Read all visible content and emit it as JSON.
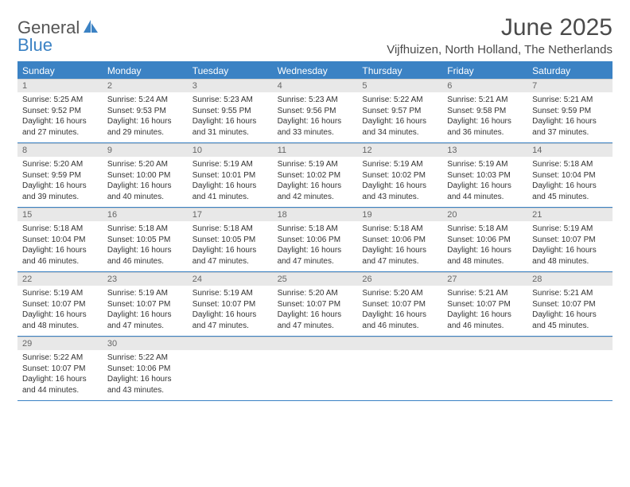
{
  "logo": {
    "text1": "General",
    "text2": "Blue"
  },
  "title": "June 2025",
  "location": "Vijfhuizen, North Holland, The Netherlands",
  "colors": {
    "accent": "#3b82c4",
    "header_bg": "#3b82c4",
    "cell_num_bg": "#e8e8e8"
  },
  "day_names": [
    "Sunday",
    "Monday",
    "Tuesday",
    "Wednesday",
    "Thursday",
    "Friday",
    "Saturday"
  ],
  "weeks": [
    [
      {
        "n": "1",
        "sr": "Sunrise: 5:25 AM",
        "ss": "Sunset: 9:52 PM",
        "d1": "Daylight: 16 hours",
        "d2": "and 27 minutes."
      },
      {
        "n": "2",
        "sr": "Sunrise: 5:24 AM",
        "ss": "Sunset: 9:53 PM",
        "d1": "Daylight: 16 hours",
        "d2": "and 29 minutes."
      },
      {
        "n": "3",
        "sr": "Sunrise: 5:23 AM",
        "ss": "Sunset: 9:55 PM",
        "d1": "Daylight: 16 hours",
        "d2": "and 31 minutes."
      },
      {
        "n": "4",
        "sr": "Sunrise: 5:23 AM",
        "ss": "Sunset: 9:56 PM",
        "d1": "Daylight: 16 hours",
        "d2": "and 33 minutes."
      },
      {
        "n": "5",
        "sr": "Sunrise: 5:22 AM",
        "ss": "Sunset: 9:57 PM",
        "d1": "Daylight: 16 hours",
        "d2": "and 34 minutes."
      },
      {
        "n": "6",
        "sr": "Sunrise: 5:21 AM",
        "ss": "Sunset: 9:58 PM",
        "d1": "Daylight: 16 hours",
        "d2": "and 36 minutes."
      },
      {
        "n": "7",
        "sr": "Sunrise: 5:21 AM",
        "ss": "Sunset: 9:59 PM",
        "d1": "Daylight: 16 hours",
        "d2": "and 37 minutes."
      }
    ],
    [
      {
        "n": "8",
        "sr": "Sunrise: 5:20 AM",
        "ss": "Sunset: 9:59 PM",
        "d1": "Daylight: 16 hours",
        "d2": "and 39 minutes."
      },
      {
        "n": "9",
        "sr": "Sunrise: 5:20 AM",
        "ss": "Sunset: 10:00 PM",
        "d1": "Daylight: 16 hours",
        "d2": "and 40 minutes."
      },
      {
        "n": "10",
        "sr": "Sunrise: 5:19 AM",
        "ss": "Sunset: 10:01 PM",
        "d1": "Daylight: 16 hours",
        "d2": "and 41 minutes."
      },
      {
        "n": "11",
        "sr": "Sunrise: 5:19 AM",
        "ss": "Sunset: 10:02 PM",
        "d1": "Daylight: 16 hours",
        "d2": "and 42 minutes."
      },
      {
        "n": "12",
        "sr": "Sunrise: 5:19 AM",
        "ss": "Sunset: 10:02 PM",
        "d1": "Daylight: 16 hours",
        "d2": "and 43 minutes."
      },
      {
        "n": "13",
        "sr": "Sunrise: 5:19 AM",
        "ss": "Sunset: 10:03 PM",
        "d1": "Daylight: 16 hours",
        "d2": "and 44 minutes."
      },
      {
        "n": "14",
        "sr": "Sunrise: 5:18 AM",
        "ss": "Sunset: 10:04 PM",
        "d1": "Daylight: 16 hours",
        "d2": "and 45 minutes."
      }
    ],
    [
      {
        "n": "15",
        "sr": "Sunrise: 5:18 AM",
        "ss": "Sunset: 10:04 PM",
        "d1": "Daylight: 16 hours",
        "d2": "and 46 minutes."
      },
      {
        "n": "16",
        "sr": "Sunrise: 5:18 AM",
        "ss": "Sunset: 10:05 PM",
        "d1": "Daylight: 16 hours",
        "d2": "and 46 minutes."
      },
      {
        "n": "17",
        "sr": "Sunrise: 5:18 AM",
        "ss": "Sunset: 10:05 PM",
        "d1": "Daylight: 16 hours",
        "d2": "and 47 minutes."
      },
      {
        "n": "18",
        "sr": "Sunrise: 5:18 AM",
        "ss": "Sunset: 10:06 PM",
        "d1": "Daylight: 16 hours",
        "d2": "and 47 minutes."
      },
      {
        "n": "19",
        "sr": "Sunrise: 5:18 AM",
        "ss": "Sunset: 10:06 PM",
        "d1": "Daylight: 16 hours",
        "d2": "and 47 minutes."
      },
      {
        "n": "20",
        "sr": "Sunrise: 5:18 AM",
        "ss": "Sunset: 10:06 PM",
        "d1": "Daylight: 16 hours",
        "d2": "and 48 minutes."
      },
      {
        "n": "21",
        "sr": "Sunrise: 5:19 AM",
        "ss": "Sunset: 10:07 PM",
        "d1": "Daylight: 16 hours",
        "d2": "and 48 minutes."
      }
    ],
    [
      {
        "n": "22",
        "sr": "Sunrise: 5:19 AM",
        "ss": "Sunset: 10:07 PM",
        "d1": "Daylight: 16 hours",
        "d2": "and 48 minutes."
      },
      {
        "n": "23",
        "sr": "Sunrise: 5:19 AM",
        "ss": "Sunset: 10:07 PM",
        "d1": "Daylight: 16 hours",
        "d2": "and 47 minutes."
      },
      {
        "n": "24",
        "sr": "Sunrise: 5:19 AM",
        "ss": "Sunset: 10:07 PM",
        "d1": "Daylight: 16 hours",
        "d2": "and 47 minutes."
      },
      {
        "n": "25",
        "sr": "Sunrise: 5:20 AM",
        "ss": "Sunset: 10:07 PM",
        "d1": "Daylight: 16 hours",
        "d2": "and 47 minutes."
      },
      {
        "n": "26",
        "sr": "Sunrise: 5:20 AM",
        "ss": "Sunset: 10:07 PM",
        "d1": "Daylight: 16 hours",
        "d2": "and 46 minutes."
      },
      {
        "n": "27",
        "sr": "Sunrise: 5:21 AM",
        "ss": "Sunset: 10:07 PM",
        "d1": "Daylight: 16 hours",
        "d2": "and 46 minutes."
      },
      {
        "n": "28",
        "sr": "Sunrise: 5:21 AM",
        "ss": "Sunset: 10:07 PM",
        "d1": "Daylight: 16 hours",
        "d2": "and 45 minutes."
      }
    ],
    [
      {
        "n": "29",
        "sr": "Sunrise: 5:22 AM",
        "ss": "Sunset: 10:07 PM",
        "d1": "Daylight: 16 hours",
        "d2": "and 44 minutes."
      },
      {
        "n": "30",
        "sr": "Sunrise: 5:22 AM",
        "ss": "Sunset: 10:06 PM",
        "d1": "Daylight: 16 hours",
        "d2": "and 43 minutes."
      },
      {
        "empty": true
      },
      {
        "empty": true
      },
      {
        "empty": true
      },
      {
        "empty": true
      },
      {
        "empty": true
      }
    ]
  ]
}
